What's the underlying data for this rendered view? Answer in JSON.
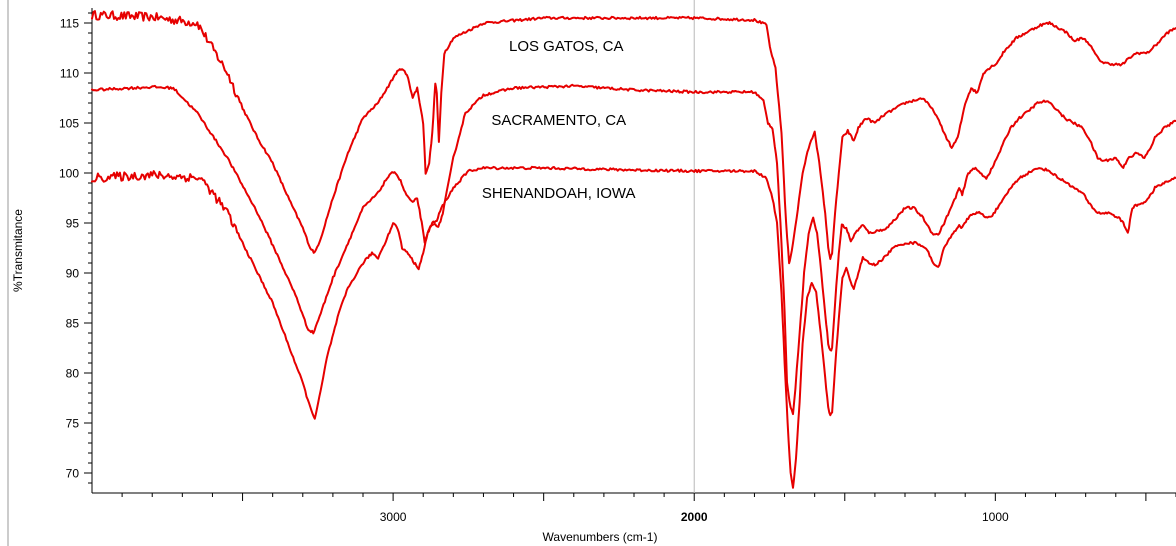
{
  "chart_data": {
    "type": "line",
    "title": "",
    "xlabel": "Wavenumbers (cm-1)",
    "ylabel": "%Transmitance",
    "x_reversed": true,
    "xlim": [
      4000,
      400
    ],
    "ylim": [
      68,
      116.5
    ],
    "x_ticks": [
      {
        "value": 3000,
        "label": "3000",
        "bold": false
      },
      {
        "value": 2000,
        "label": "2000",
        "bold": true
      },
      {
        "value": 1000,
        "label": "1000",
        "bold": false
      }
    ],
    "y_ticks": [
      70,
      75,
      80,
      85,
      90,
      95,
      100,
      105,
      110,
      115
    ],
    "y_tick_labels": [
      "70",
      "75",
      "80",
      "85",
      "90",
      "95",
      "100",
      "105",
      "110",
      "115"
    ],
    "grid": "vertical line at 2000 only",
    "color": "#e60000",
    "series": [
      {
        "name": "LOS GATOS, CA",
        "label_position": [
          2425,
          112.2
        ],
        "noisy_above": 3500,
        "points": [
          [
            4000,
            115.8
          ],
          [
            3800,
            115.6
          ],
          [
            3650,
            115
          ],
          [
            3600,
            112.5
          ],
          [
            3550,
            110
          ],
          [
            3500,
            106.5
          ],
          [
            3450,
            103.5
          ],
          [
            3400,
            101
          ],
          [
            3340,
            97
          ],
          [
            3300,
            94.5
          ],
          [
            3275,
            92.5
          ],
          [
            3260,
            92
          ],
          [
            3240,
            93.5
          ],
          [
            3200,
            97.5
          ],
          [
            3150,
            102
          ],
          [
            3100,
            105.5
          ],
          [
            3050,
            107
          ],
          [
            3020,
            108.5
          ],
          [
            2990,
            110
          ],
          [
            2970,
            110.5
          ],
          [
            2950,
            109.5
          ],
          [
            2935,
            107.5
          ],
          [
            2920,
            108.5
          ],
          [
            2900,
            105
          ],
          [
            2892,
            100
          ],
          [
            2880,
            101
          ],
          [
            2870,
            104
          ],
          [
            2860,
            109
          ],
          [
            2855,
            108
          ],
          [
            2848,
            103
          ],
          [
            2840,
            108
          ],
          [
            2830,
            112
          ],
          [
            2800,
            113.5
          ],
          [
            2700,
            115
          ],
          [
            2500,
            115.5
          ],
          [
            2200,
            115.5
          ],
          [
            2000,
            115.5
          ],
          [
            1800,
            115.3
          ],
          [
            1760,
            114.8
          ],
          [
            1745,
            112
          ],
          [
            1730,
            110.5
          ],
          [
            1710,
            104
          ],
          [
            1695,
            95
          ],
          [
            1685,
            91
          ],
          [
            1680,
            91.5
          ],
          [
            1660,
            95.5
          ],
          [
            1640,
            100
          ],
          [
            1620,
            102.5
          ],
          [
            1600,
            104.2
          ],
          [
            1585,
            101
          ],
          [
            1565,
            96
          ],
          [
            1555,
            92.5
          ],
          [
            1548,
            91.5
          ],
          [
            1542,
            92
          ],
          [
            1532,
            96
          ],
          [
            1520,
            100
          ],
          [
            1508,
            103.5
          ],
          [
            1490,
            104.2
          ],
          [
            1470,
            103.2
          ],
          [
            1455,
            104.5
          ],
          [
            1430,
            105.5
          ],
          [
            1400,
            105
          ],
          [
            1370,
            105.8
          ],
          [
            1300,
            107
          ],
          [
            1240,
            107.5
          ],
          [
            1200,
            106
          ],
          [
            1170,
            104
          ],
          [
            1145,
            102.5
          ],
          [
            1125,
            103.5
          ],
          [
            1100,
            107
          ],
          [
            1080,
            108.5
          ],
          [
            1060,
            108
          ],
          [
            1040,
            110
          ],
          [
            1020,
            110.5
          ],
          [
            995,
            111
          ],
          [
            970,
            112.2
          ],
          [
            930,
            113.5
          ],
          [
            900,
            114
          ],
          [
            850,
            114.8
          ],
          [
            820,
            115
          ],
          [
            790,
            114.5
          ],
          [
            760,
            114
          ],
          [
            740,
            113.2
          ],
          [
            710,
            113.5
          ],
          [
            690,
            113
          ],
          [
            660,
            111.5
          ],
          [
            640,
            111
          ],
          [
            580,
            110.8
          ],
          [
            555,
            111.5
          ],
          [
            530,
            112
          ],
          [
            495,
            112
          ],
          [
            460,
            113
          ],
          [
            430,
            114
          ],
          [
            400,
            114.5
          ]
        ]
      },
      {
        "name": "SACRAMENTO, CA",
        "label_position": [
          2450,
          104.8
        ],
        "noisy_above": 99999,
        "points": [
          [
            4000,
            108.3
          ],
          [
            3800,
            108.6
          ],
          [
            3730,
            108.5
          ],
          [
            3650,
            106
          ],
          [
            3550,
            101.5
          ],
          [
            3450,
            96
          ],
          [
            3380,
            91.5
          ],
          [
            3320,
            87.5
          ],
          [
            3285,
            84.5
          ],
          [
            3265,
            84
          ],
          [
            3240,
            86
          ],
          [
            3200,
            89.5
          ],
          [
            3150,
            93
          ],
          [
            3100,
            96.5
          ],
          [
            3050,
            98
          ],
          [
            3020,
            99.5
          ],
          [
            2995,
            100.2
          ],
          [
            2975,
            99.2
          ],
          [
            2960,
            98
          ],
          [
            2935,
            97
          ],
          [
            2920,
            97.5
          ],
          [
            2905,
            95
          ],
          [
            2895,
            93
          ],
          [
            2880,
            94.5
          ],
          [
            2860,
            95
          ],
          [
            2850,
            94.5
          ],
          [
            2835,
            96
          ],
          [
            2800,
            101.5
          ],
          [
            2760,
            106
          ],
          [
            2700,
            107.8
          ],
          [
            2600,
            108.5
          ],
          [
            2400,
            108.7
          ],
          [
            2200,
            108.3
          ],
          [
            2000,
            108.1
          ],
          [
            1800,
            108.1
          ],
          [
            1770,
            107.2
          ],
          [
            1755,
            105
          ],
          [
            1740,
            104.5
          ],
          [
            1725,
            101
          ],
          [
            1710,
            93
          ],
          [
            1700,
            86
          ],
          [
            1692,
            79
          ],
          [
            1680,
            76.5
          ],
          [
            1672,
            76
          ],
          [
            1664,
            78.5
          ],
          [
            1650,
            84
          ],
          [
            1635,
            90
          ],
          [
            1620,
            94
          ],
          [
            1605,
            95.5
          ],
          [
            1592,
            94
          ],
          [
            1578,
            90
          ],
          [
            1565,
            86
          ],
          [
            1555,
            83
          ],
          [
            1548,
            82.2
          ],
          [
            1542,
            82.5
          ],
          [
            1532,
            87
          ],
          [
            1520,
            92
          ],
          [
            1510,
            94.8
          ],
          [
            1495,
            94.5
          ],
          [
            1480,
            93.2
          ],
          [
            1460,
            94.2
          ],
          [
            1440,
            94.8
          ],
          [
            1420,
            94
          ],
          [
            1390,
            94.2
          ],
          [
            1360,
            94.5
          ],
          [
            1330,
            95.5
          ],
          [
            1300,
            96.5
          ],
          [
            1270,
            96.5
          ],
          [
            1240,
            95.5
          ],
          [
            1210,
            94
          ],
          [
            1190,
            93.8
          ],
          [
            1170,
            95
          ],
          [
            1140,
            97
          ],
          [
            1120,
            98.5
          ],
          [
            1110,
            97.8
          ],
          [
            1090,
            100
          ],
          [
            1070,
            100.5
          ],
          [
            1050,
            100
          ],
          [
            1030,
            99.5
          ],
          [
            1010,
            100.5
          ],
          [
            980,
            102.5
          ],
          [
            950,
            104.5
          ],
          [
            920,
            105.5
          ],
          [
            890,
            106.2
          ],
          [
            860,
            107
          ],
          [
            830,
            107.2
          ],
          [
            800,
            106.5
          ],
          [
            770,
            105.5
          ],
          [
            740,
            105
          ],
          [
            710,
            104.5
          ],
          [
            690,
            103.5
          ],
          [
            660,
            101.5
          ],
          [
            640,
            101.2
          ],
          [
            600,
            101.5
          ],
          [
            575,
            100.5
          ],
          [
            560,
            101.5
          ],
          [
            530,
            102
          ],
          [
            505,
            101.5
          ],
          [
            485,
            102.5
          ],
          [
            470,
            103.5
          ],
          [
            440,
            104.5
          ],
          [
            400,
            105.2
          ]
        ]
      },
      {
        "name": "SHENANDOAH, IOWA",
        "label_position": [
          2450,
          97.5
        ],
        "noisy_above": 3500,
        "points": [
          [
            4000,
            99.5
          ],
          [
            3800,
            99.8
          ],
          [
            3640,
            99.5
          ],
          [
            3600,
            98
          ],
          [
            3550,
            96
          ],
          [
            3500,
            93
          ],
          [
            3450,
            90
          ],
          [
            3400,
            87
          ],
          [
            3350,
            83
          ],
          [
            3300,
            79
          ],
          [
            3275,
            76.5
          ],
          [
            3260,
            75.5
          ],
          [
            3245,
            77.5
          ],
          [
            3220,
            81.5
          ],
          [
            3180,
            86
          ],
          [
            3150,
            88.5
          ],
          [
            3100,
            91
          ],
          [
            3070,
            92
          ],
          [
            3050,
            91.5
          ],
          [
            3020,
            93.5
          ],
          [
            3000,
            95
          ],
          [
            2985,
            94.5
          ],
          [
            2970,
            92.5
          ],
          [
            2950,
            92
          ],
          [
            2930,
            91
          ],
          [
            2915,
            90.5
          ],
          [
            2900,
            92
          ],
          [
            2885,
            94
          ],
          [
            2870,
            95
          ],
          [
            2855,
            95.2
          ],
          [
            2840,
            96.5
          ],
          [
            2800,
            98.5
          ],
          [
            2750,
            100.2
          ],
          [
            2700,
            100.5
          ],
          [
            2500,
            100.5
          ],
          [
            2200,
            100.3
          ],
          [
            2000,
            100.2
          ],
          [
            1800,
            100.2
          ],
          [
            1760,
            99.5
          ],
          [
            1740,
            97.5
          ],
          [
            1725,
            95
          ],
          [
            1710,
            88
          ],
          [
            1700,
            81
          ],
          [
            1690,
            75
          ],
          [
            1680,
            70
          ],
          [
            1672,
            68.5
          ],
          [
            1662,
            71.5
          ],
          [
            1650,
            77
          ],
          [
            1640,
            83
          ],
          [
            1625,
            87.5
          ],
          [
            1610,
            89
          ],
          [
            1595,
            88
          ],
          [
            1580,
            84
          ],
          [
            1565,
            79.5
          ],
          [
            1555,
            76.5
          ],
          [
            1548,
            75.8
          ],
          [
            1542,
            76
          ],
          [
            1532,
            80.5
          ],
          [
            1520,
            85.5
          ],
          [
            1508,
            89.5
          ],
          [
            1495,
            90.5
          ],
          [
            1480,
            89
          ],
          [
            1470,
            88.5
          ],
          [
            1455,
            90
          ],
          [
            1440,
            91.5
          ],
          [
            1420,
            91
          ],
          [
            1400,
            90.8
          ],
          [
            1370,
            91.5
          ],
          [
            1340,
            92.5
          ],
          [
            1300,
            93
          ],
          [
            1260,
            93
          ],
          [
            1230,
            92.5
          ],
          [
            1210,
            91.2
          ],
          [
            1190,
            90.5
          ],
          [
            1170,
            92.5
          ],
          [
            1140,
            94
          ],
          [
            1120,
            94.8
          ],
          [
            1110,
            94.5
          ],
          [
            1090,
            95.5
          ],
          [
            1070,
            96
          ],
          [
            1050,
            96
          ],
          [
            1030,
            95.5
          ],
          [
            1010,
            95.8
          ],
          [
            980,
            97
          ],
          [
            950,
            98.5
          ],
          [
            920,
            99.5
          ],
          [
            880,
            100.2
          ],
          [
            850,
            100.5
          ],
          [
            820,
            100.2
          ],
          [
            790,
            99.5
          ],
          [
            760,
            99
          ],
          [
            740,
            98.5
          ],
          [
            710,
            98
          ],
          [
            690,
            97
          ],
          [
            660,
            96
          ],
          [
            620,
            96
          ],
          [
            590,
            95.5
          ],
          [
            575,
            95
          ],
          [
            560,
            94
          ],
          [
            545,
            96.5
          ],
          [
            530,
            96.8
          ],
          [
            510,
            97
          ],
          [
            490,
            97.5
          ],
          [
            470,
            98.5
          ],
          [
            440,
            99
          ],
          [
            400,
            99.5
          ]
        ]
      }
    ]
  }
}
